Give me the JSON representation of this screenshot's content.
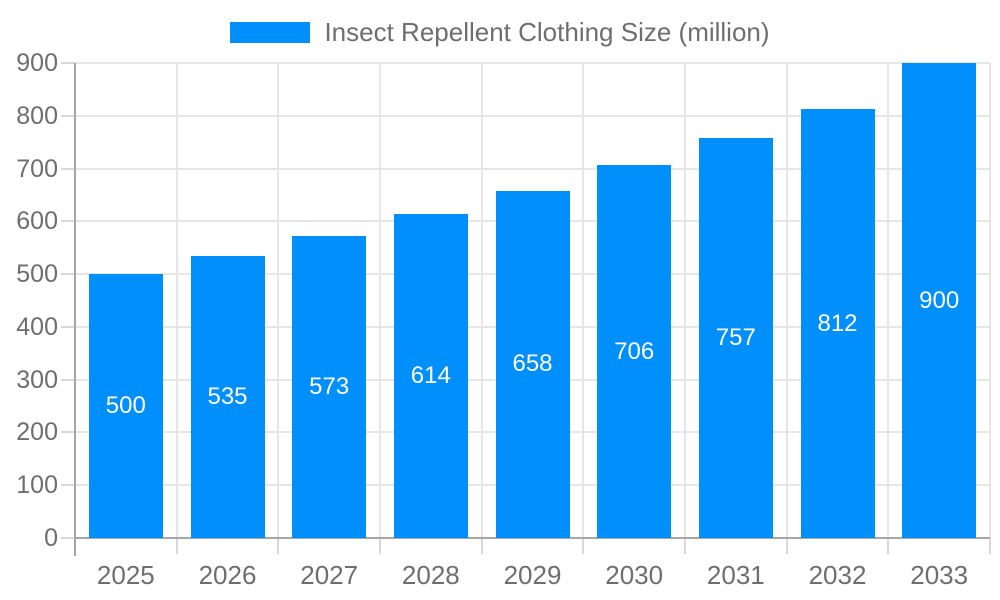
{
  "chart_data": {
    "type": "bar",
    "title": "Insect Repellent Clothing Size (million)",
    "legend_position": "top",
    "categories": [
      "2025",
      "2026",
      "2027",
      "2028",
      "2029",
      "2030",
      "2031",
      "2032",
      "2033"
    ],
    "series": [
      {
        "name": "Insect Repellent Clothing Size (million)",
        "values": [
          500,
          535,
          573,
          614,
          658,
          706,
          757,
          812,
          900
        ]
      }
    ],
    "xlabel": "",
    "ylabel": "",
    "ylim": [
      0,
      900
    ],
    "ytick_step": 100,
    "yticks": [
      0,
      100,
      200,
      300,
      400,
      500,
      600,
      700,
      800,
      900
    ],
    "grid": "on",
    "colors": {
      "bar": "#008FFB",
      "value_label": "#FFFFFF",
      "axis_text": "#6E6E6E",
      "grid_line": "#E6E6E6",
      "axis_line": "#A6A6A6",
      "tick_line": "#D8D8D8"
    }
  }
}
